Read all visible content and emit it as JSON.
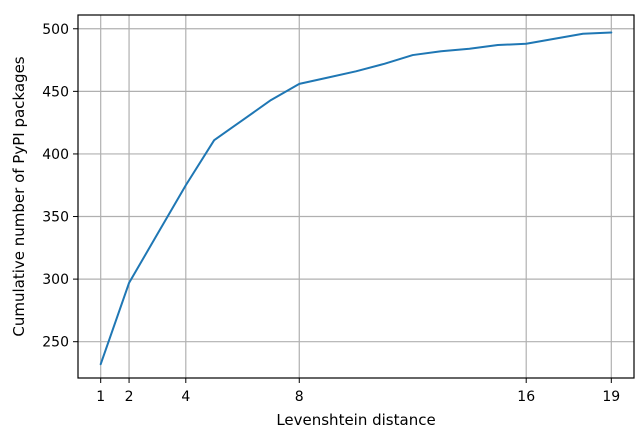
{
  "chart_data": {
    "type": "line",
    "title": "",
    "xlabel": "Levenshtein distance",
    "ylabel": "Cumulative number of PyPI packages",
    "xlim": [
      0.2,
      19.8
    ],
    "ylim": [
      221,
      511
    ],
    "xticks": [
      1,
      2,
      4,
      8,
      16,
      19
    ],
    "yticks": [
      250,
      300,
      350,
      400,
      450,
      500
    ],
    "grid": true,
    "legend": "none",
    "colors": {
      "line": "#1f77b4",
      "grid": "#b0b0b0"
    },
    "series": [
      {
        "x": [
          1,
          2,
          3,
          4,
          5,
          6,
          7,
          8,
          9,
          10,
          11,
          12,
          13,
          14,
          15,
          16,
          17,
          18,
          19
        ],
        "values": [
          232,
          297,
          336,
          375,
          411,
          427,
          443,
          456,
          461,
          466,
          472,
          479,
          482,
          484,
          487,
          488,
          492,
          496,
          497
        ]
      }
    ]
  }
}
